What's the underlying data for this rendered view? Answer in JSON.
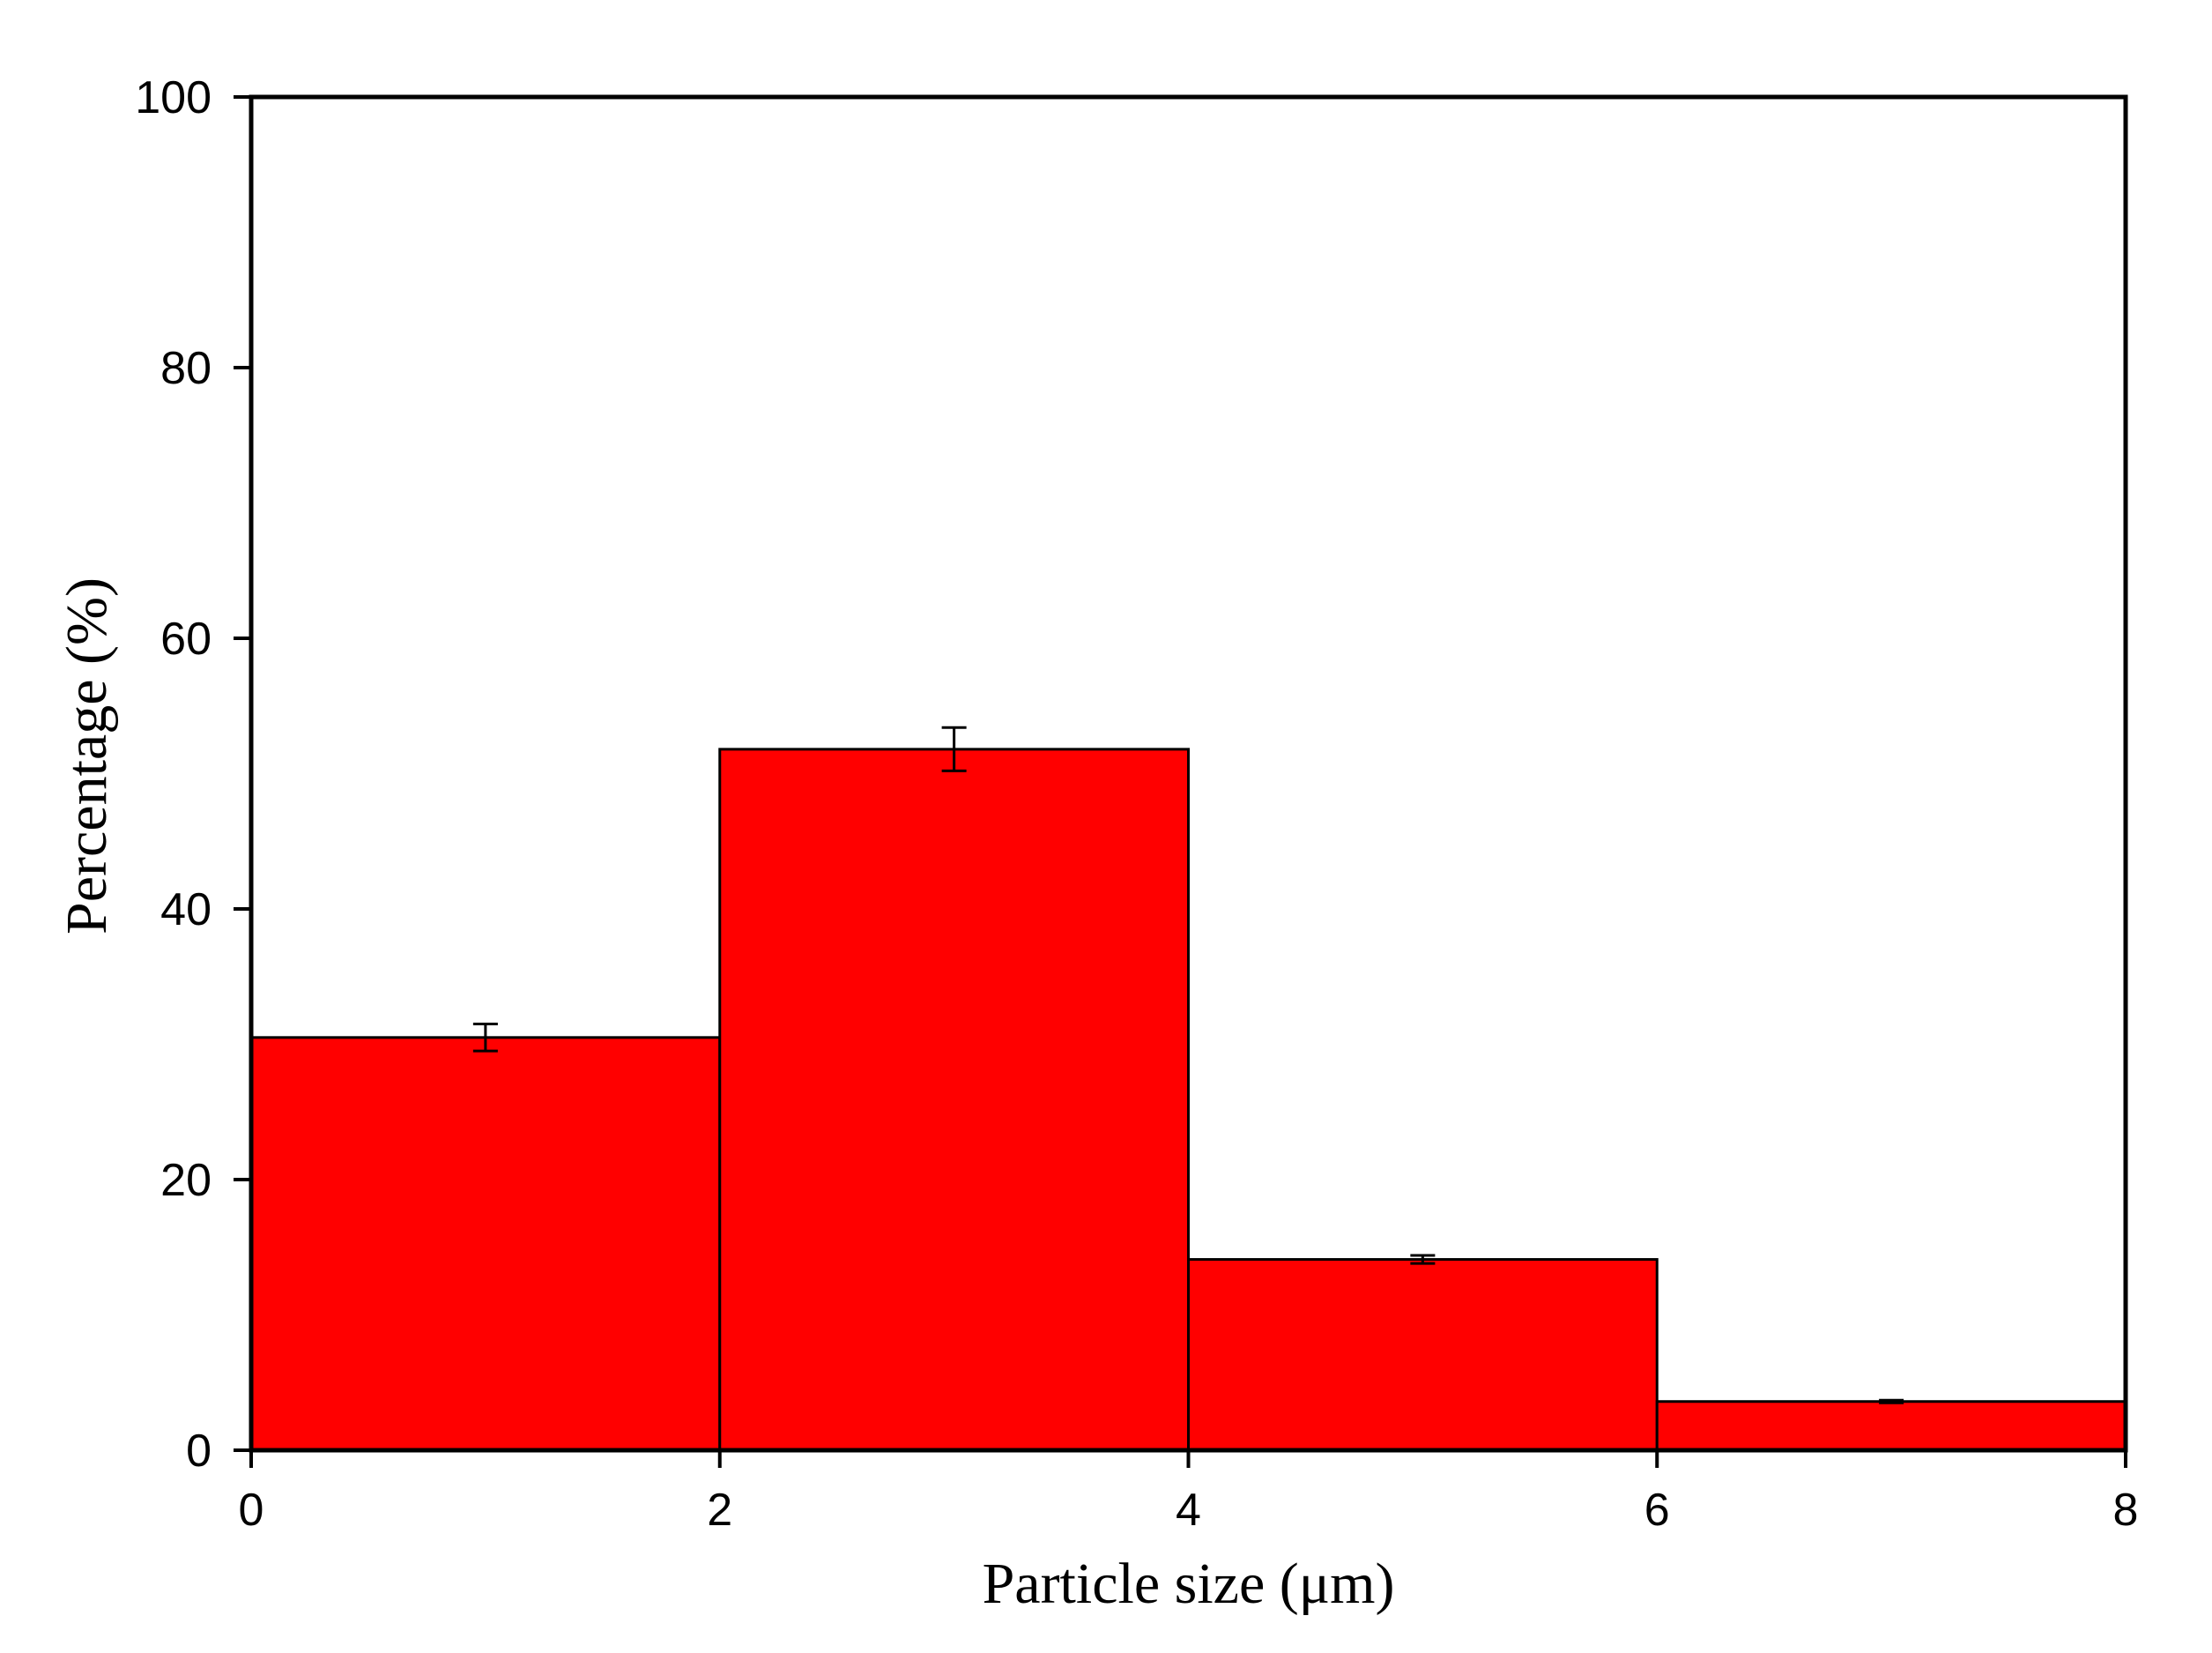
{
  "chart_data": {
    "type": "bar",
    "subtype": "histogram",
    "xlabel": "Particle size (μm)",
    "ylabel": "Percentage (%)",
    "xlim": [
      0,
      8
    ],
    "ylim": [
      0,
      100
    ],
    "x_ticks": [
      "0",
      "2",
      "4",
      "6",
      "8"
    ],
    "y_ticks": [
      "0",
      "20",
      "40",
      "60",
      "80",
      "100"
    ],
    "bins": [
      [
        0,
        2
      ],
      [
        2,
        4
      ],
      [
        4,
        6
      ],
      [
        6,
        8
      ]
    ],
    "values": [
      30.5,
      51.8,
      14.1,
      3.6
    ],
    "errors": [
      1.0,
      1.6,
      0.3,
      0.1
    ],
    "bar_color": "#ff0000",
    "grid": false,
    "legend": "none"
  }
}
